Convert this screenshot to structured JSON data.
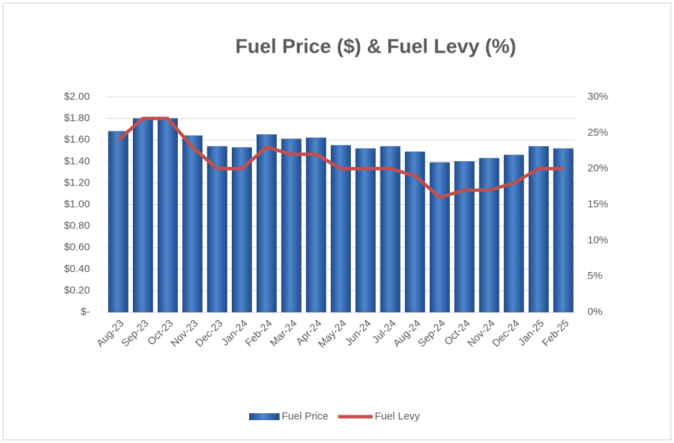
{
  "chart_data": {
    "type": "bar",
    "title": "Fuel Price ($) & Fuel Levy (%)",
    "categories": [
      "Aug-23",
      "Sep-23",
      "Oct-23",
      "Nov-23",
      "Dec-23",
      "Jan-24",
      "Feb-24",
      "Mar-24",
      "Apr-24",
      "May-24",
      "Jun-24",
      "Jul-24",
      "Aug-24",
      "Sep-24",
      "Oct-24",
      "Nov-24",
      "Dec-24",
      "Jan-25",
      "Feb-25"
    ],
    "series": [
      {
        "name": "Fuel Price",
        "type": "bar",
        "color": "#2e5fa8",
        "axis": "y",
        "values": [
          1.68,
          1.8,
          1.8,
          1.64,
          1.54,
          1.53,
          1.65,
          1.61,
          1.62,
          1.55,
          1.52,
          1.54,
          1.49,
          1.39,
          1.4,
          1.43,
          1.46,
          1.54,
          1.52
        ]
      },
      {
        "name": "Fuel Levy",
        "type": "line",
        "color": "#c0504d",
        "axis": "y2",
        "values": [
          24,
          27,
          27,
          23,
          20,
          20,
          23,
          22,
          22,
          20,
          20,
          20,
          19,
          16,
          17,
          17,
          18,
          20,
          20
        ]
      }
    ],
    "ylim": [
      0,
      2
    ],
    "yticks": [
      {
        "value": 0,
        "label": "$-"
      },
      {
        "value": 0.2,
        "label": "$0.20"
      },
      {
        "value": 0.4,
        "label": "$0.40"
      },
      {
        "value": 0.6,
        "label": "$0.60"
      },
      {
        "value": 0.8,
        "label": "$0.80"
      },
      {
        "value": 1,
        "label": "$1.00"
      },
      {
        "value": 1.2,
        "label": "$1.20"
      },
      {
        "value": 1.4,
        "label": "$1.40"
      },
      {
        "value": 1.6,
        "label": "$1.60"
      },
      {
        "value": 1.8,
        "label": "$1.80"
      },
      {
        "value": 2,
        "label": "$2.00"
      }
    ],
    "y2lim": [
      0,
      30
    ],
    "y2ticks": [
      {
        "value": 0,
        "label": "0%"
      },
      {
        "value": 5,
        "label": "5%"
      },
      {
        "value": 10,
        "label": "10%"
      },
      {
        "value": 15,
        "label": "15%"
      },
      {
        "value": 20,
        "label": "20%"
      },
      {
        "value": 25,
        "label": "25%"
      },
      {
        "value": 30,
        "label": "30%"
      }
    ],
    "grid": true,
    "legend": "bottom"
  }
}
